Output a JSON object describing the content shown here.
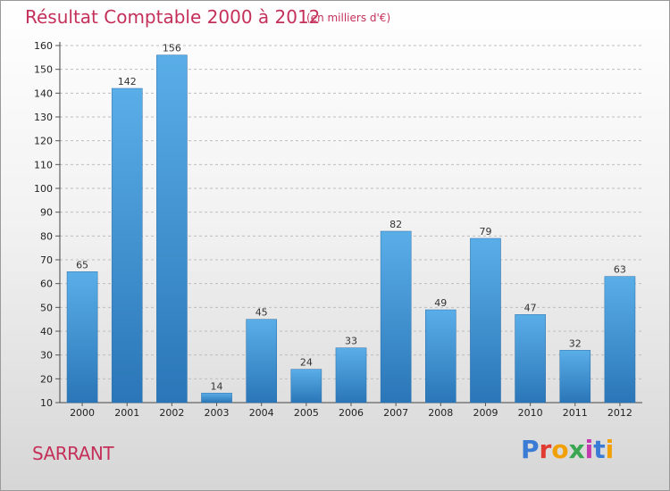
{
  "header": {
    "title": "Résultat Comptable 2000 à 2012",
    "subtitle": "(en milliers d'€)"
  },
  "footer": {
    "place": "SARRANT",
    "brand": "Proxiti",
    "brand_colors": [
      "#3a7bd5",
      "#e03c31",
      "#f2a007",
      "#3aa651",
      "#c438b0",
      "#3a7bd5",
      "#f2a007"
    ]
  },
  "colors": {
    "bar_top": "#5aaee8",
    "bar_bottom": "#2a76b8",
    "title": "#c4305a"
  },
  "chart_data": {
    "type": "bar",
    "categories": [
      "2000",
      "2001",
      "2002",
      "2003",
      "2004",
      "2005",
      "2006",
      "2007",
      "2008",
      "2009",
      "2010",
      "2011",
      "2012"
    ],
    "values": [
      65,
      142,
      156,
      14,
      45,
      24,
      33,
      82,
      49,
      79,
      47,
      32,
      63
    ],
    "title": "Résultat Comptable 2000 à 2012",
    "ylim": [
      10,
      160
    ],
    "yticks": [
      10,
      20,
      30,
      40,
      50,
      60,
      70,
      80,
      90,
      100,
      110,
      120,
      130,
      140,
      150,
      160
    ],
    "grid": true
  }
}
